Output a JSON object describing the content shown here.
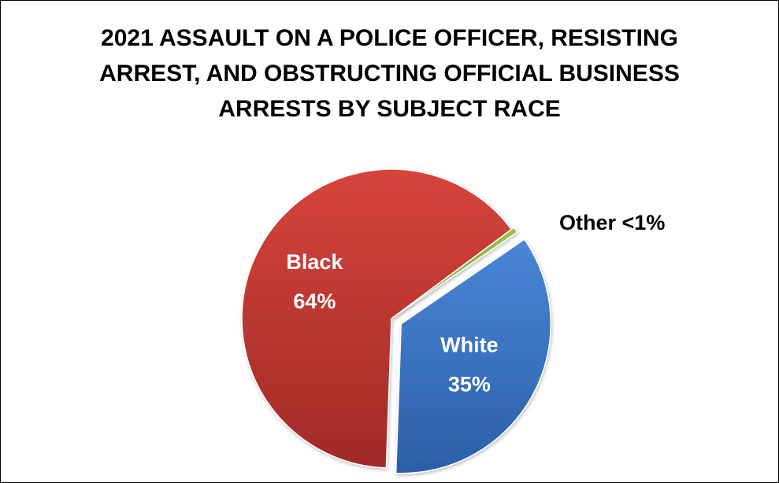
{
  "chart_data": {
    "type": "pie",
    "title_lines": [
      "2021 ASSAULT ON A POLICE OFFICER, RESISTING",
      "ARREST, AND OBSTRUCTING OFFICIAL BUSINESS",
      "ARRESTS BY SUBJECT RACE"
    ],
    "slices": [
      {
        "name": "Black",
        "label": "64%",
        "value": 64,
        "color": "#C0392B"
      },
      {
        "name": "Other",
        "label": "<1%",
        "value": 0.6,
        "color": "#8DB33E"
      },
      {
        "name": "White",
        "label": "35%",
        "value": 35,
        "color": "#3A73C2"
      }
    ],
    "legend": "none"
  }
}
